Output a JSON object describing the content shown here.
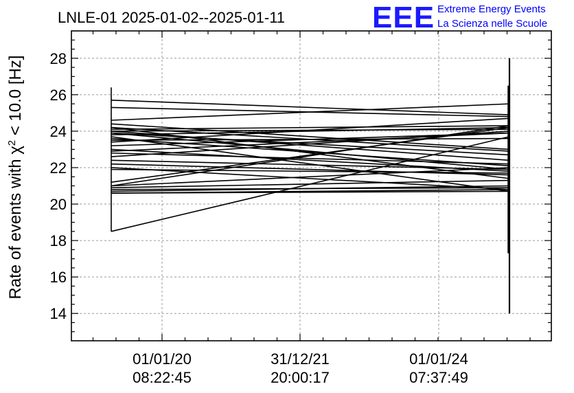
{
  "chart_data": {
    "type": "line",
    "title": "LNLE-01 2025-01-02--2025-01-11",
    "ylabel": "Rate of events with χ² < 10.0 [Hz]",
    "xlabel": "",
    "ylim": [
      12.5,
      29.5
    ],
    "yticks": [
      14,
      16,
      18,
      20,
      22,
      24,
      26,
      28
    ],
    "yticks_labels": [
      "14",
      "16",
      "18",
      "20",
      "22",
      "24",
      "26",
      "28"
    ],
    "xticks_labels": [
      {
        "date": "01/01/20",
        "time": "08:22:45"
      },
      {
        "date": "31/12/21",
        "time": "20:00:17"
      },
      {
        "date": "01/01/24",
        "time": "07:37:49"
      }
    ],
    "grid": true,
    "series": [
      {
        "x_left": "01/01/19",
        "x_right": "01/01/25",
        "segments": [
          [
            25.7,
            24.9
          ],
          [
            25.3,
            24.8
          ],
          [
            24.6,
            25.5
          ],
          [
            24.4,
            23.0
          ],
          [
            24.2,
            22.9
          ],
          [
            24.1,
            24.3
          ],
          [
            24.0,
            22.4
          ],
          [
            23.9,
            21.9
          ],
          [
            23.8,
            24.2
          ],
          [
            23.6,
            22.1
          ],
          [
            23.4,
            24.7
          ],
          [
            23.2,
            23.9
          ],
          [
            23.0,
            21.8
          ],
          [
            22.8,
            22.2
          ],
          [
            22.6,
            24.0
          ],
          [
            22.4,
            21.9
          ],
          [
            22.2,
            21.6
          ],
          [
            21.9,
            21.7
          ],
          [
            21.0,
            22.0
          ],
          [
            20.9,
            21.3
          ],
          [
            20.8,
            20.9
          ],
          [
            20.7,
            21.0
          ],
          [
            20.6,
            20.7
          ],
          [
            20.6,
            20.8
          ],
          [
            18.5,
            23.7
          ],
          [
            24.2,
            21.4
          ],
          [
            23.7,
            20.7
          ],
          [
            22.0,
            20.8
          ],
          [
            21.2,
            24.2
          ],
          [
            21.0,
            24.3
          ],
          [
            24.0,
            24.1
          ],
          [
            23.5,
            23.6
          ],
          [
            22.9,
            23.9
          ],
          [
            23.9,
            22.7
          ]
        ],
        "left_vertical_range": [
          18.5,
          26.4
        ],
        "right_vertical_range": [
          14.0,
          28.0
        ]
      }
    ]
  },
  "logo": {
    "mark": "EEE",
    "line1": "Extreme Energy Events",
    "line2": "La Scienza nelle Scuole"
  }
}
